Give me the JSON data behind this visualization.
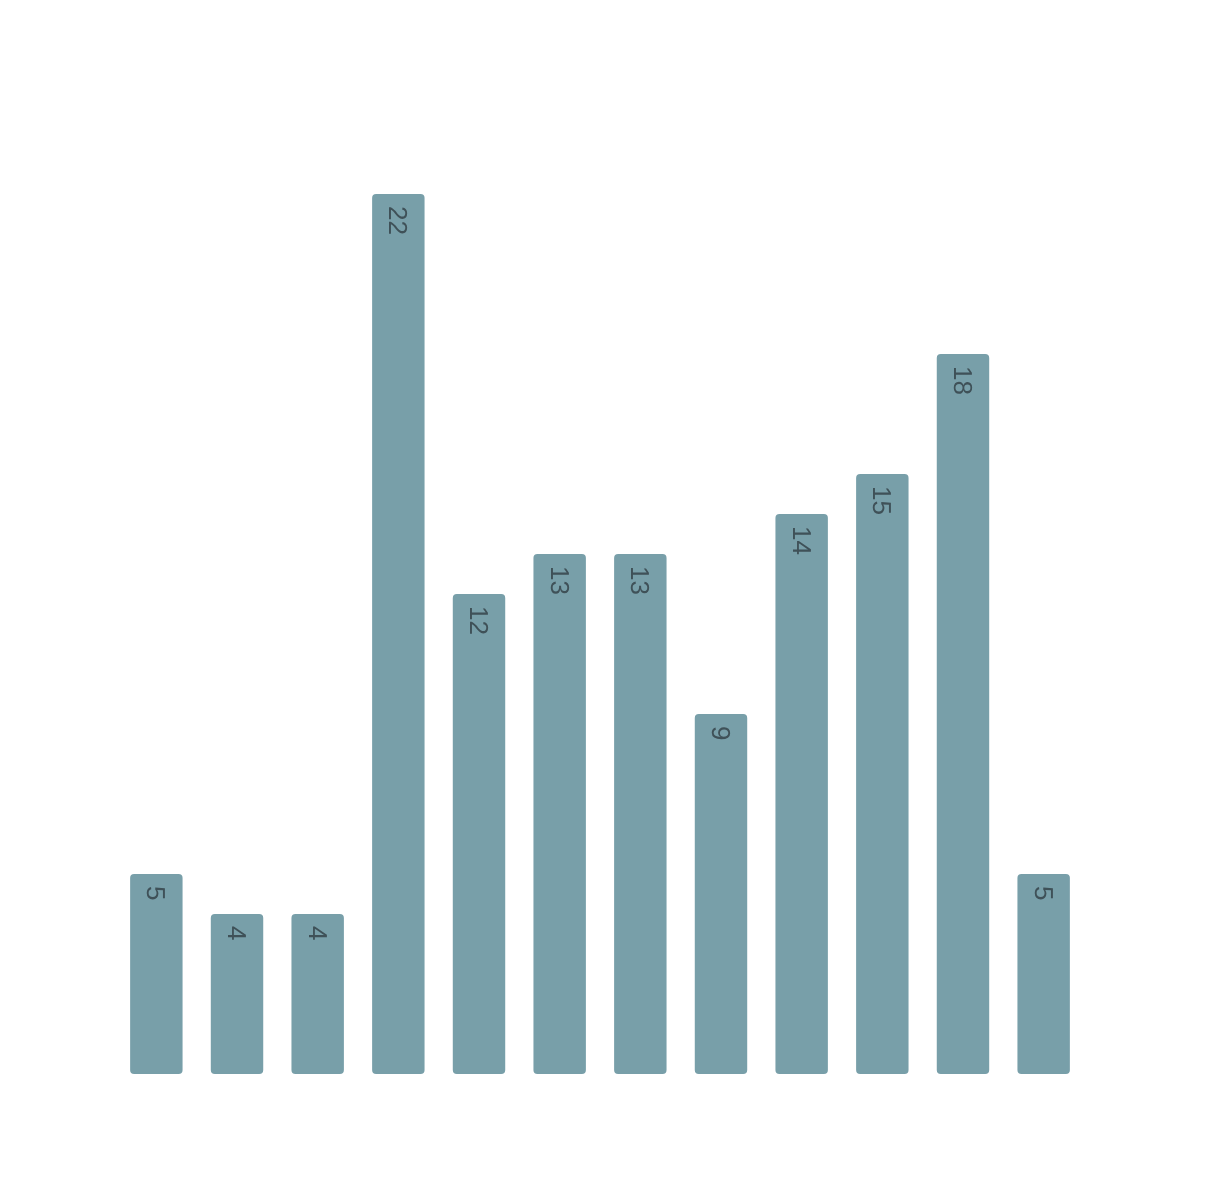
{
  "chart_data": {
    "type": "bar",
    "categories": [
      null,
      null,
      null,
      null,
      null,
      null,
      null,
      null,
      null,
      null,
      null,
      null
    ],
    "values": [
      5,
      4,
      4,
      22,
      12,
      13,
      13,
      9,
      14,
      15,
      18,
      5
    ],
    "color": "#789fa9",
    "data_labels": true
  }
}
